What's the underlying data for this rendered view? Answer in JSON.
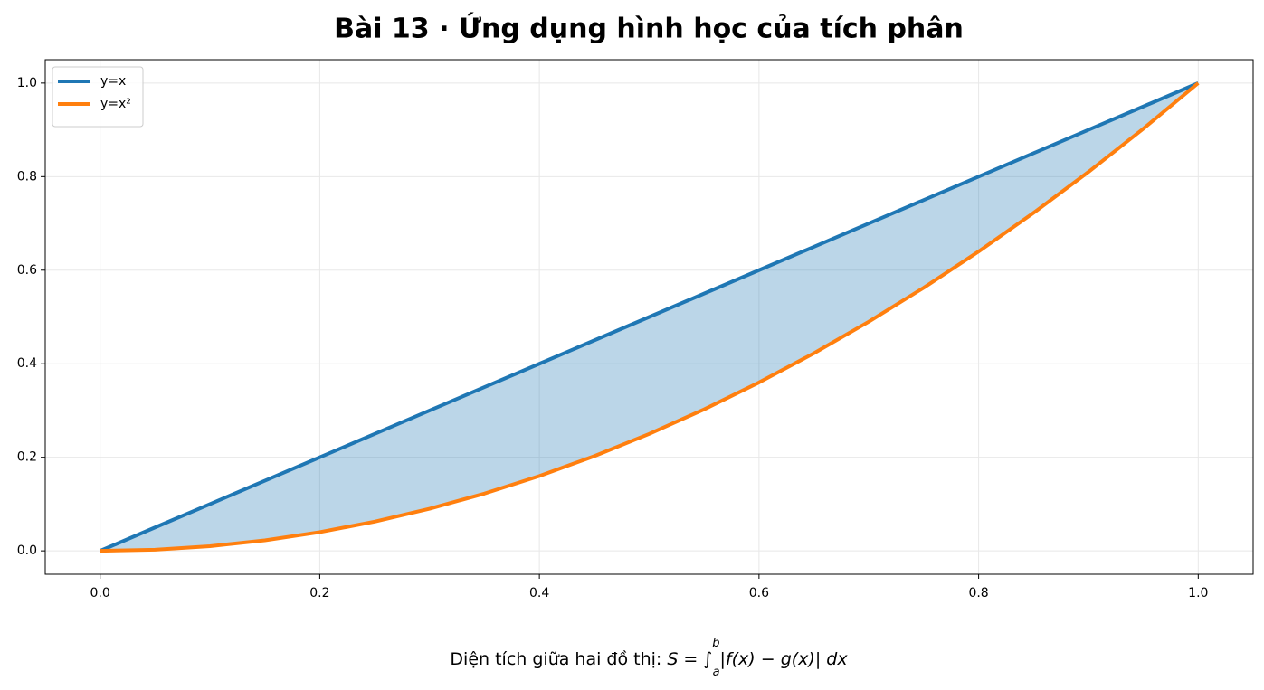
{
  "chart_data": {
    "type": "line",
    "title": "Bài 13 · Ứng dụng hình học của tích phân",
    "x": [
      0,
      0.05,
      0.1,
      0.15,
      0.2,
      0.25,
      0.3,
      0.35,
      0.4,
      0.45,
      0.5,
      0.55,
      0.6,
      0.65,
      0.7,
      0.75,
      0.8,
      0.85,
      0.9,
      0.95,
      1.0
    ],
    "series": [
      {
        "name": "y=x",
        "color": "#1f77b4",
        "values": [
          0,
          0.05,
          0.1,
          0.15,
          0.2,
          0.25,
          0.3,
          0.35,
          0.4,
          0.45,
          0.5,
          0.55,
          0.6,
          0.65,
          0.7,
          0.75,
          0.8,
          0.85,
          0.9,
          0.95,
          1.0
        ]
      },
      {
        "name": "y=x²",
        "color": "#ff7f0e",
        "values": [
          0,
          0.0025,
          0.01,
          0.0225,
          0.04,
          0.0625,
          0.09,
          0.1225,
          0.16,
          0.2025,
          0.25,
          0.3025,
          0.36,
          0.4225,
          0.49,
          0.5625,
          0.64,
          0.7225,
          0.81,
          0.9025,
          1.0
        ]
      }
    ],
    "fill_between": {
      "color": "#1f77b4",
      "opacity": 0.3
    },
    "xlim": [
      -0.05,
      1.05
    ],
    "ylim": [
      -0.05,
      1.05
    ],
    "xticks": [
      {
        "value": 0,
        "label": "0.0"
      },
      0.2,
      0.4,
      0.6,
      0.8,
      {
        "value": 1,
        "label": "1.0"
      }
    ],
    "yticks": [
      {
        "value": 0,
        "label": "0.0"
      },
      0.2,
      0.4,
      0.6,
      0.8,
      {
        "value": 1,
        "label": "1.0"
      }
    ],
    "grid": true,
    "legend": "upper left",
    "caption": {
      "prefix": "Diện tích giữa hai đồ thị:",
      "lhs": "S = ∫",
      "upper": "b",
      "lower": "a",
      "integrand": "|f(x) − g(x)| dx"
    }
  }
}
